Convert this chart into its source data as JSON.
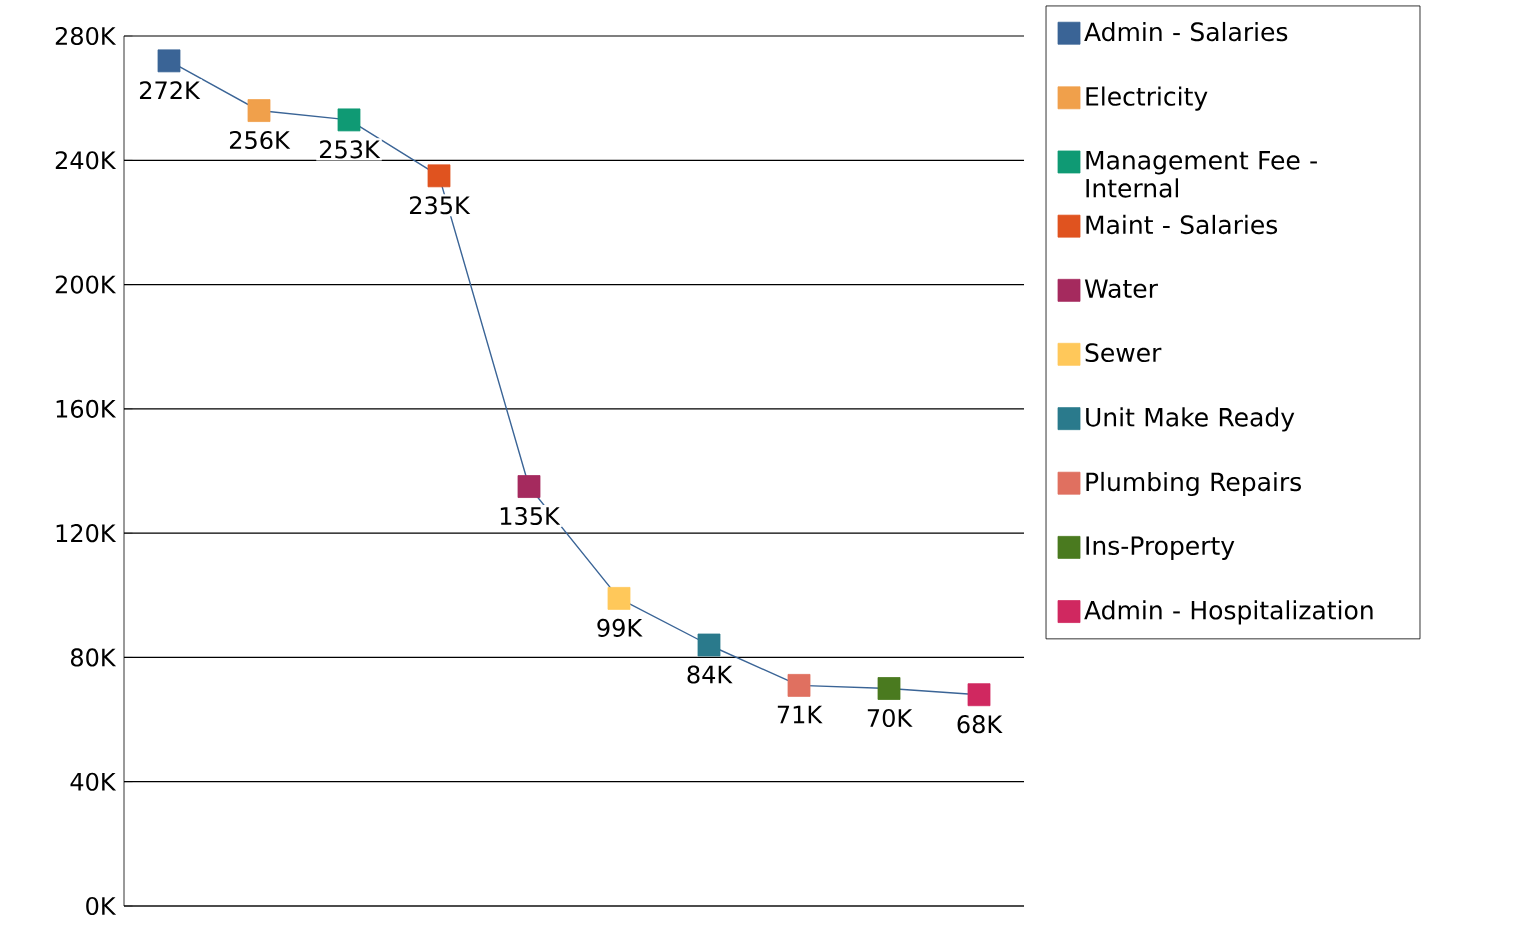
{
  "chart_data": {
    "type": "line",
    "categories": [
      null,
      null,
      null,
      null,
      null,
      null,
      null,
      null,
      null,
      null
    ],
    "series": [
      {
        "color": "#3a6496",
        "marker": "none",
        "values": [
          272000,
          256000,
          253000,
          235000,
          135000,
          99000,
          84000,
          71000,
          70000,
          68000
        ],
        "value_labels": [
          "272K",
          "256K",
          "253K",
          "235K",
          "135K",
          "99K",
          "84K",
          "71K",
          "70K",
          "68K"
        ]
      },
      {
        "type": "scatter",
        "name": "Admin - Salaries",
        "color": "#3a6496",
        "values": [
          272000,
          null,
          null,
          null,
          null,
          null,
          null,
          null,
          null,
          null
        ]
      },
      {
        "type": "scatter",
        "name": "Electricity",
        "color": "#f0a04b",
        "values": [
          null,
          256000,
          null,
          null,
          null,
          null,
          null,
          null,
          null,
          null
        ]
      },
      {
        "type": "scatter",
        "name": "Management Fee - Internal",
        "color": "#0f9a74",
        "values": [
          null,
          null,
          253000,
          null,
          null,
          null,
          null,
          null,
          null,
          null
        ]
      },
      {
        "type": "scatter",
        "name": "Maint - Salaries",
        "color": "#e0531f",
        "values": [
          null,
          null,
          null,
          235000,
          null,
          null,
          null,
          null,
          null,
          null
        ]
      },
      {
        "type": "scatter",
        "name": "Water",
        "color": "#a52a5e",
        "values": [
          null,
          null,
          null,
          null,
          135000,
          null,
          null,
          null,
          null,
          null
        ]
      },
      {
        "type": "scatter",
        "name": "Sewer",
        "color": "#ffc85a",
        "values": [
          null,
          null,
          null,
          null,
          null,
          99000,
          null,
          null,
          null,
          null
        ]
      },
      {
        "type": "scatter",
        "name": "Unit Make Ready",
        "color": "#2a7a8c",
        "values": [
          null,
          null,
          null,
          null,
          null,
          null,
          84000,
          null,
          null,
          null
        ]
      },
      {
        "type": "scatter",
        "name": "Plumbing Repairs",
        "color": "#e07060",
        "values": [
          null,
          null,
          null,
          null,
          null,
          null,
          null,
          71000,
          null,
          null
        ]
      },
      {
        "type": "scatter",
        "name": "Ins-Property",
        "color": "#4a7a1f",
        "values": [
          null,
          null,
          null,
          null,
          null,
          null,
          null,
          null,
          70000,
          null
        ]
      },
      {
        "type": "scatter",
        "name": "Admin - Hospitalization",
        "color": "#d02860",
        "values": [
          null,
          null,
          null,
          null,
          null,
          null,
          null,
          null,
          null,
          68000
        ]
      }
    ],
    "marker": "square",
    "legend": "right",
    "grid": "y",
    "tick_labels": "y",
    "ylim": [
      0,
      280000
    ],
    "yticks": [
      {
        "value": 0,
        "label": "0K"
      },
      {
        "value": 40000,
        "label": "40K"
      },
      {
        "value": 80000,
        "label": "80K"
      },
      {
        "value": 120000,
        "label": "120K"
      },
      {
        "value": 160000,
        "label": "160K"
      },
      {
        "value": 200000,
        "label": "200K"
      },
      {
        "value": 240000,
        "label": "240K"
      },
      {
        "value": 280000,
        "label": "280K"
      }
    ]
  }
}
